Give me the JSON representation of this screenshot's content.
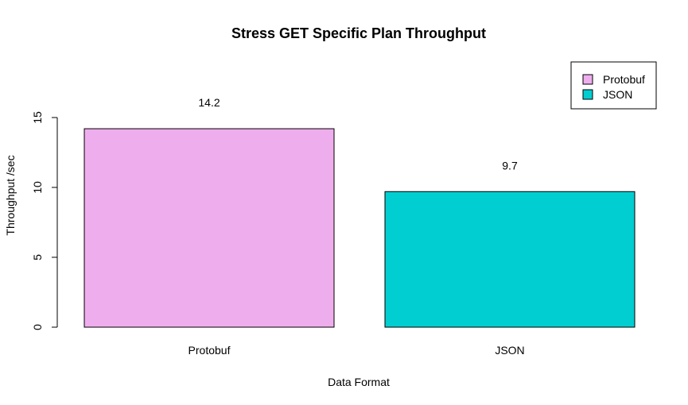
{
  "chart_data": {
    "type": "bar",
    "title": "Stress GET Specific Plan Throughput",
    "xlabel": "Data Format",
    "ylabel": "Throughput /sec",
    "categories": [
      "Protobuf",
      "JSON"
    ],
    "values": [
      14.2,
      9.7
    ],
    "data_labels": [
      "14.2",
      "9.7"
    ],
    "colors": [
      "#EEAEEE",
      "#00CED1"
    ],
    "ylim": [
      0,
      15
    ],
    "yticks": [
      0,
      5,
      10,
      15
    ],
    "ytick_labels": [
      "0",
      "5",
      "10",
      "15"
    ],
    "grid": false,
    "legend": {
      "position": "top-right",
      "entries": [
        {
          "label": "Protobuf",
          "color": "#EEAEEE"
        },
        {
          "label": "JSON",
          "color": "#00CED1"
        }
      ]
    }
  }
}
